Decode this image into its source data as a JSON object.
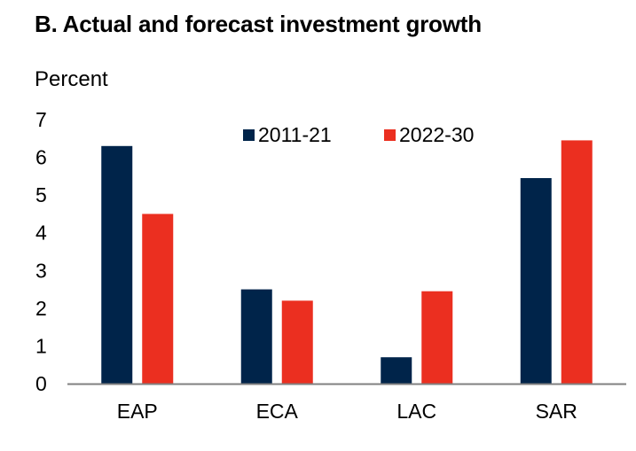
{
  "chart_data": {
    "type": "bar",
    "title": "B. Actual and forecast investment growth",
    "xlabel": "",
    "ylabel": "Percent",
    "ylim": [
      0,
      7
    ],
    "yticks": [
      0,
      1,
      2,
      3,
      4,
      5,
      6,
      7
    ],
    "categories": [
      "EAP",
      "ECA",
      "LAC",
      "SAR"
    ],
    "series": [
      {
        "name": "2011-21",
        "color": "#00244a",
        "values": [
          6.3,
          2.5,
          0.7,
          5.45
        ]
      },
      {
        "name": "2022-30",
        "color": "#eb2f20",
        "values": [
          4.5,
          2.2,
          2.45,
          6.45
        ]
      }
    ],
    "legend_position": "top-center",
    "grid": false
  }
}
